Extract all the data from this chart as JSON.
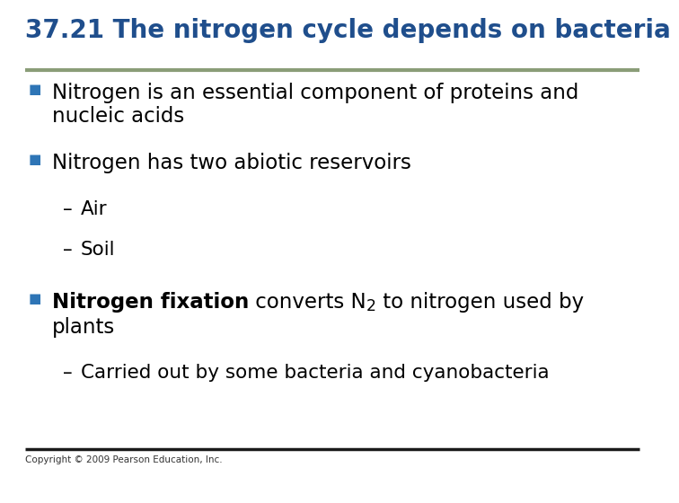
{
  "title": "37.21 The nitrogen cycle depends on bacteria",
  "title_color": "#1F4E8C",
  "title_fontsize": 20,
  "bg_color": "#FFFFFF",
  "separator_color_top": "#8A9D78",
  "separator_color_bottom": "#1A1A1A",
  "bullet_color": "#2E75B6",
  "bullet_char": "■",
  "copyright": "Copyright © 2009 Pearson Education, Inc.",
  "copyright_fontsize": 7.5,
  "copyright_color": "#333333"
}
